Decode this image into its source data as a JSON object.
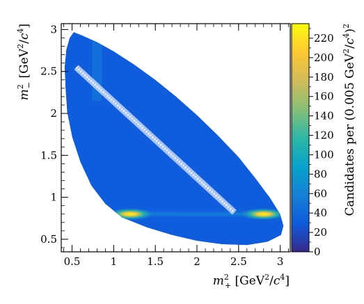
{
  "chart_data": {
    "type": "heatmap",
    "title": "",
    "xlabel": {
      "var": "m",
      "sup": "2",
      "sub": "+",
      "units_open": " [GeV",
      "units_sup1": "2",
      "units_mid": "/",
      "units_c": "c",
      "units_sup2": "4",
      "units_close": "]"
    },
    "ylabel": {
      "var": "m",
      "sup": "2",
      "sub": "−",
      "units_open": " [GeV",
      "units_sup1": "2",
      "units_mid": "/",
      "units_c": "c",
      "units_sup2": "4",
      "units_close": "]"
    },
    "zlabel": {
      "pre": "Candidates per (0.005 GeV",
      "sup1": "2",
      "mid": "/",
      "c": "c",
      "sup2": "4",
      "close": ")",
      "sup3": "2"
    },
    "xlim": [
      0.37,
      3.12
    ],
    "ylim": [
      0.35,
      3.07
    ],
    "zlim": [
      0,
      235
    ],
    "x_ticks": [
      0.5,
      1,
      1.5,
      2,
      2.5,
      3
    ],
    "x_tick_labels": [
      "0.5",
      "1",
      "1.5",
      "2",
      "2.5",
      "3"
    ],
    "y_ticks": [
      0.5,
      1,
      1.5,
      2,
      2.5,
      3
    ],
    "y_tick_labels": [
      "0.5",
      "1",
      "1.5",
      "2",
      "2.5",
      "3"
    ],
    "z_ticks": [
      0,
      20,
      40,
      60,
      80,
      100,
      120,
      140,
      160,
      180,
      200,
      220
    ],
    "z_tick_labels": [
      "0",
      "20",
      "40",
      "60",
      "80",
      "100",
      "120",
      "140",
      "160",
      "180",
      "200",
      "220"
    ],
    "colormap": [
      "#352a87",
      "#0f5cdd",
      "#1481d6",
      "#06a4ca",
      "#2eb7a4",
      "#87bf77",
      "#d1bb59",
      "#fec832",
      "#f9fb0e"
    ],
    "dalitz_boundary": [
      [
        0.52,
        2.97
      ],
      [
        0.62,
        2.93
      ],
      [
        0.8,
        2.85
      ],
      [
        1.0,
        2.74
      ],
      [
        1.25,
        2.58
      ],
      [
        1.5,
        2.4
      ],
      [
        1.75,
        2.2
      ],
      [
        2.0,
        1.98
      ],
      [
        2.25,
        1.74
      ],
      [
        2.5,
        1.48
      ],
      [
        2.7,
        1.23
      ],
      [
        2.88,
        0.99
      ],
      [
        3.0,
        0.8
      ],
      [
        3.04,
        0.66
      ],
      [
        3.01,
        0.55
      ],
      [
        2.85,
        0.47
      ],
      [
        2.6,
        0.43
      ],
      [
        2.3,
        0.44
      ],
      [
        2.0,
        0.48
      ],
      [
        1.7,
        0.55
      ],
      [
        1.4,
        0.64
      ],
      [
        1.1,
        0.76
      ],
      [
        0.9,
        0.92
      ],
      [
        0.73,
        1.14
      ],
      [
        0.6,
        1.42
      ],
      [
        0.5,
        1.72
      ],
      [
        0.44,
        2.02
      ],
      [
        0.42,
        2.32
      ],
      [
        0.41,
        2.55
      ],
      [
        0.43,
        2.76
      ],
      [
        0.47,
        2.9
      ]
    ],
    "resonance_bands": [
      {
        "orientation": "horizontal",
        "y": 0.8,
        "x_range": [
          0.87,
          2.98
        ],
        "peak_x": [
          1.2,
          2.8
        ],
        "peak_value": 230
      },
      {
        "orientation": "vertical",
        "x": 0.8,
        "y_range": [
          2.15,
          2.88
        ],
        "peak_value": 40
      },
      {
        "orientation": "diagonal",
        "from": [
          0.55,
          2.55
        ],
        "to": [
          2.45,
          0.82
        ],
        "peak_value": 5
      }
    ],
    "grid": false,
    "legend": "none"
  }
}
